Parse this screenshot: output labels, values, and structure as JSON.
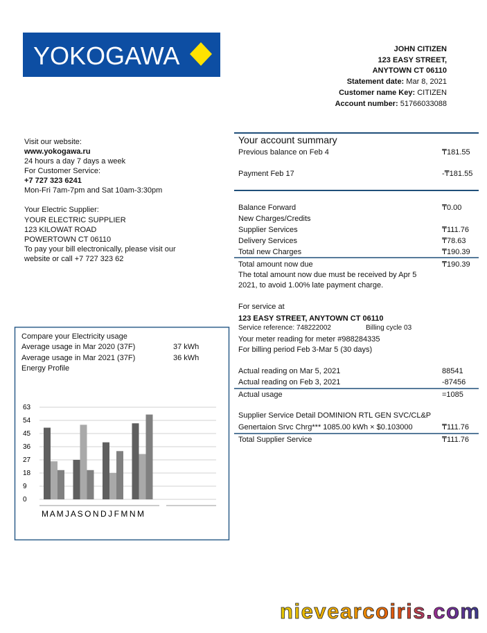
{
  "header": {
    "logo": "YOKOGAWA",
    "customer": {
      "name": "JOHN CITIZEN",
      "street": "123 EASY STREET,",
      "city": "ANYTOWN CT 06110"
    },
    "statement_date": {
      "label": "Statement date:",
      "value": "Mar 8, 2021"
    },
    "customer_key": {
      "label": "Customer name Key:",
      "value": "CITIZEN"
    },
    "account_number": {
      "label": "Account number:",
      "value": "51766033088"
    }
  },
  "contact": {
    "lines": [
      "Visit our website:",
      "www.yokogawa.ru",
      "24 hours a day 7 days a week",
      "For Customer Service:",
      "+7 727 323 6241",
      "Mon-Fri 7am-7pm and Sat 10am-3:30pm",
      "Your Electric Supplier:",
      "YOUR ELECTRIC SUPPLIER",
      "123 KILOWAT ROAD",
      "POWERTOWN CT 06110",
      "To pay your bill electronically, please visit our",
      "website or call +7 727 323 62"
    ]
  },
  "summary": {
    "title": "Your account summary",
    "rows": [
      {
        "label": "Previous balance on Feb 4",
        "value": "₸181.55"
      },
      {
        "label": "Payment Feb 17",
        "value": "-₸181.55"
      },
      {
        "label": "Balance Forward",
        "value": "₸0.00"
      },
      {
        "label": "New Charges/Credits"
      },
      {
        "label": "Supplier Services",
        "value": "₸111.76"
      },
      {
        "label": "Delivery Services",
        "value": "₸78.63"
      },
      {
        "label": "Total new Charges",
        "value": "₸190.39"
      },
      {
        "label": "Total amount now due",
        "value": "₸190.39"
      },
      {
        "label": "The total amount now due must be received by Apr 5"
      },
      {
        "label": "2021, to avoid 1.00% late payment charge."
      },
      {
        "label": "For service at"
      },
      {
        "label": "123 EASY STREET, ANYTOWN CT 06110"
      },
      {
        "label": "Service reference: 748222002",
        "note": "Billing cycle 03"
      },
      {
        "label": "Your meter reading for meter #988284335"
      },
      {
        "label": "For billing period Feb 3-Mar 5 (30 days)"
      },
      {
        "label": "Actual reading on Mar 5, 2021",
        "value": "88541"
      },
      {
        "label": "Actual reading on Feb 3, 2021",
        "value": "-87456"
      },
      {
        "label": "Actual usage",
        "value": "=1085"
      },
      {
        "label": "Supplier Service Detail DOMINION RTL GEN SVC/CL&P"
      },
      {
        "label": "Genertaion Srvc Chrg*** 1085.00 kWh × $0.103000",
        "value": "₸111.76"
      },
      {
        "label": "Total Supplier Service",
        "value": "₸111.76"
      }
    ]
  },
  "usage_box": {
    "title": "Compare your Electricity usage",
    "rows": [
      [
        "Average usage in Mar 2020 (37F)",
        "37 kWh"
      ],
      [
        "Average usage in Mar 2021 (37F)",
        "36 kWh"
      ]
    ],
    "subtitle": "Energy Profile"
  },
  "chart_data": {
    "type": "bar",
    "xlabel": "M A M J A S O N D J F M N M",
    "categories": [
      null,
      null,
      null,
      null
    ],
    "series": [
      {
        "color": "#5f5f5f",
        "values": [
          49,
          27,
          39,
          52
        ]
      },
      {
        "color": "#a9a9a9",
        "values": [
          26,
          51,
          18,
          31
        ]
      },
      {
        "color": "#808080",
        "values": [
          20,
          20,
          33,
          58
        ]
      }
    ],
    "ylim": [
      0,
      63
    ],
    "yticks": [
      0,
      9,
      18,
      27,
      36,
      45,
      54,
      63
    ],
    "grid": true
  },
  "watermark": "nievearcoiris.com"
}
